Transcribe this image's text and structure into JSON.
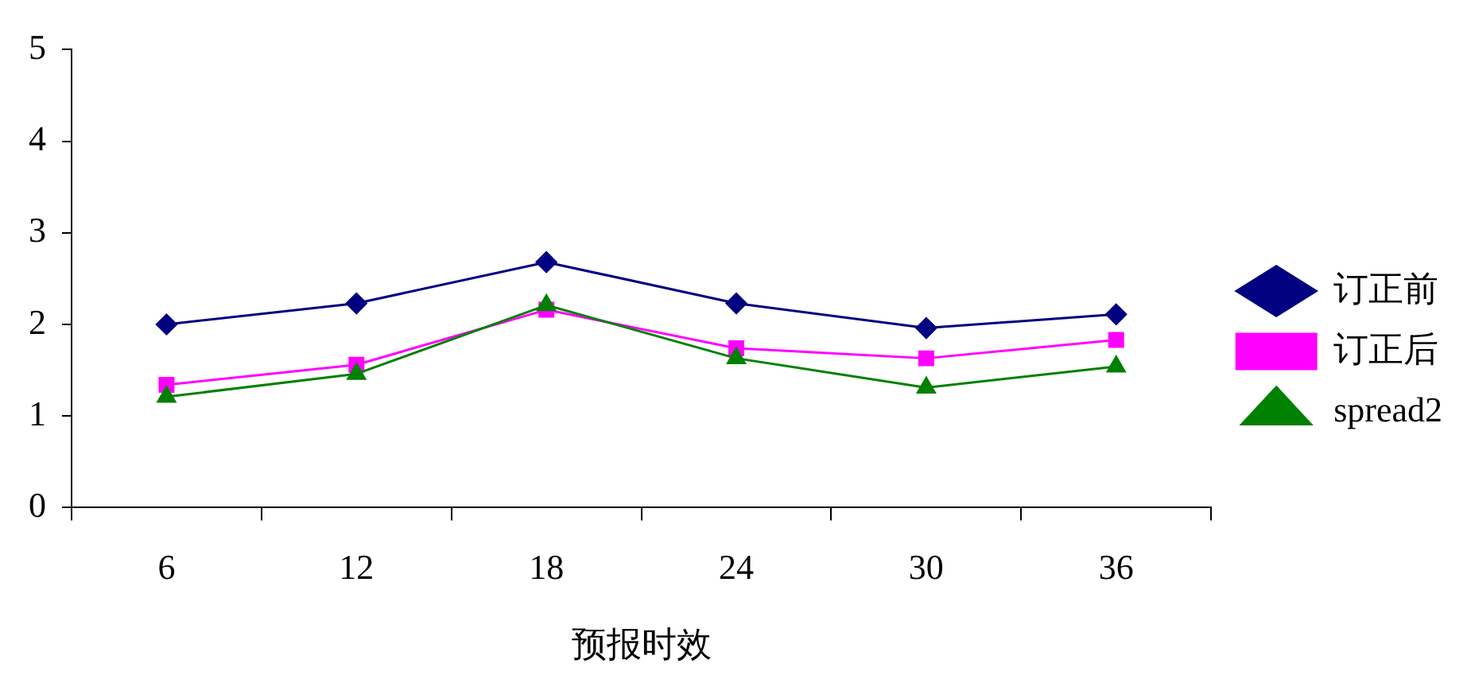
{
  "chart_data": {
    "type": "line",
    "xlabel": "预报时效",
    "categories": [
      "6",
      "12",
      "18",
      "24",
      "30",
      "36"
    ],
    "series": [
      {
        "name": "订正前",
        "color": "#000080",
        "marker": "diamond",
        "values": [
          2.0,
          2.23,
          2.68,
          2.23,
          1.96,
          2.11
        ]
      },
      {
        "name": "订正后",
        "color": "#ff00ff",
        "marker": "square",
        "values": [
          1.34,
          1.56,
          2.16,
          1.74,
          1.63,
          1.83
        ]
      },
      {
        "name": "spread2",
        "color": "#008000",
        "marker": "triangle",
        "values": [
          1.21,
          1.46,
          2.21,
          1.63,
          1.31,
          1.54
        ]
      }
    ],
    "ylim": [
      0,
      5
    ],
    "yticks": [
      0,
      1,
      2,
      3,
      4,
      5
    ],
    "grid": false,
    "legend": "right",
    "line_style": "solid"
  }
}
